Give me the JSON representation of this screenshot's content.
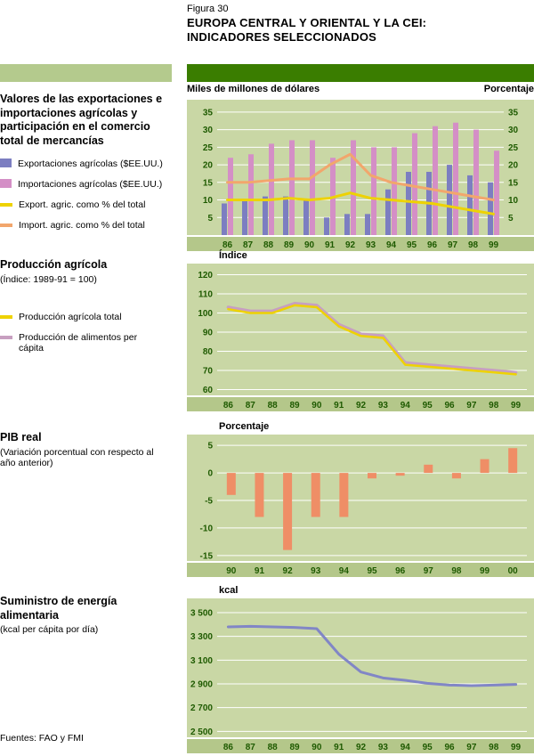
{
  "page": {
    "figura": "Figura 30",
    "title1": "EUROPA CENTRAL Y ORIENTAL Y LA CEI:",
    "title2": "INDICADORES SELECCIONADOS",
    "fuentes": "Fuentes: FAO y FMI"
  },
  "colors": {
    "dark_green": "#3a7d00",
    "light_green": "#b4ca8d",
    "sage": "#c9d7a5",
    "strip": "#b4c78a",
    "tick_text": "#1e5a00",
    "bar_blue": "#7c7ec1",
    "bar_pink": "#d48fc6",
    "bar_salmon": "#ef8e66",
    "line_yellow": "#eed202",
    "line_orange": "#f2a66c",
    "line_mauve": "#c79fc0",
    "line_blue": "#8186c6"
  },
  "sections": [
    {
      "title": "Valores de las exportaciones e importaciones agrícolas y participación en el comercio total de mercancías",
      "legend": [
        {
          "swatch": "square",
          "color_key": "bar_blue",
          "label": "Exportaciones agrícolas ($EE.UU.)"
        },
        {
          "swatch": "square",
          "color_key": "bar_pink",
          "label": "Importaciones agrícolas ($EE.UU.)"
        },
        {
          "swatch": "line",
          "color_key": "line_yellow",
          "label": "Export. agric. como % del total"
        },
        {
          "swatch": "line",
          "color_key": "line_orange",
          "label": "Import. agric. como % del total"
        }
      ]
    },
    {
      "title": "Producción agrícola",
      "subtitle": "(Índice: 1989-91 = 100)",
      "legend": [
        {
          "swatch": "line",
          "color_key": "line_yellow",
          "label": "Producción agrícola total"
        },
        {
          "swatch": "line",
          "color_key": "line_mauve",
          "label": "Producción de alimentos per cápita"
        }
      ]
    },
    {
      "title": "PIB real",
      "subtitle": "(Variación porcentual con respecto al año anterior)"
    },
    {
      "title": "Suministro de energía alimentaria",
      "subtitle": "(kcal per cápita por día)"
    }
  ],
  "chart_data": [
    {
      "type": "bar+line",
      "unit_left": "Miles de millones de dólares",
      "unit_right": "Porcentaje",
      "categories": [
        "86",
        "87",
        "88",
        "89",
        "90",
        "91",
        "92",
        "93",
        "94",
        "95",
        "96",
        "97",
        "98",
        "99"
      ],
      "ymin": 0,
      "ymax": 37,
      "yticks": [
        5,
        10,
        15,
        20,
        25,
        30,
        35
      ],
      "right_axis": true,
      "bar_series": [
        {
          "name": "Exportaciones agrícolas ($EE.UU.)",
          "color_key": "bar_blue",
          "values": [
            9,
            10,
            11,
            11,
            10,
            5,
            6,
            6,
            13,
            18,
            18,
            20,
            17,
            15
          ]
        },
        {
          "name": "Importaciones agrícolas ($EE.UU.)",
          "color_key": "bar_pink",
          "values": [
            22,
            23,
            26,
            27,
            27,
            22,
            27,
            25,
            25,
            29,
            31,
            32,
            30,
            24
          ]
        }
      ],
      "line_series": [
        {
          "name": "Import. agric. como % del total",
          "color_key": "line_orange",
          "width": 3,
          "values": [
            15,
            15,
            15.5,
            16,
            16,
            20,
            23,
            17,
            15,
            14,
            13,
            12,
            11,
            10
          ]
        },
        {
          "name": "Export. agric. como % del total",
          "color_key": "line_yellow",
          "width": 3,
          "values": [
            10,
            10,
            10,
            10.5,
            10,
            10.5,
            12,
            10.5,
            10,
            9.5,
            9,
            8,
            7,
            6
          ]
        }
      ]
    },
    {
      "type": "line",
      "unit": "Índice",
      "categories": [
        "86",
        "87",
        "88",
        "89",
        "90",
        "91",
        "92",
        "93",
        "94",
        "95",
        "96",
        "97",
        "98",
        "99"
      ],
      "ymin": 57,
      "ymax": 123,
      "yticks": [
        60,
        70,
        80,
        90,
        100,
        110,
        120
      ],
      "line_series": [
        {
          "name": "Producción de alimentos per cápita",
          "color_key": "line_mauve",
          "width": 3.5,
          "values": [
            103,
            101,
            101,
            105,
            104,
            94,
            89,
            88,
            74,
            73,
            72,
            71,
            70,
            69
          ]
        },
        {
          "name": "Producción agrícola total",
          "color_key": "line_yellow",
          "width": 2.5,
          "values": [
            102,
            100,
            100,
            104,
            103,
            93,
            88,
            87,
            73,
            72,
            71,
            70,
            69,
            68
          ]
        }
      ]
    },
    {
      "type": "bar",
      "unit": "Porcentaje",
      "categories": [
        "90",
        "91",
        "92",
        "93",
        "94",
        "95",
        "96",
        "97",
        "98",
        "99",
        "00"
      ],
      "ymin": -16,
      "ymax": 6,
      "yticks": [
        5,
        0,
        -5,
        -10,
        -15
      ],
      "bar_series": [
        {
          "name": "PIB real, variación porcentual anual",
          "color_key": "bar_salmon",
          "values": [
            -4,
            -8,
            -14,
            -8,
            -8,
            -1,
            -0.5,
            1.5,
            -1,
            2.5,
            4.5
          ]
        }
      ]
    },
    {
      "type": "line",
      "unit": "kcal",
      "categories": [
        "86",
        "87",
        "88",
        "89",
        "90",
        "91",
        "92",
        "93",
        "94",
        "95",
        "96",
        "97",
        "98",
        "99"
      ],
      "ymin": 2450,
      "ymax": 3560,
      "yticks": [
        2500,
        2700,
        2900,
        3100,
        3300,
        3500
      ],
      "ytick_labels": [
        "2 500",
        "2 700",
        "2 900",
        "3 100",
        "3 300",
        "3 500"
      ],
      "line_series": [
        {
          "name": "Suministro de energía alimentaria",
          "color_key": "line_blue",
          "width": 3,
          "values": [
            3380,
            3385,
            3380,
            3375,
            3365,
            3150,
            3000,
            2950,
            2930,
            2905,
            2890,
            2885,
            2890,
            2895
          ]
        }
      ]
    }
  ]
}
